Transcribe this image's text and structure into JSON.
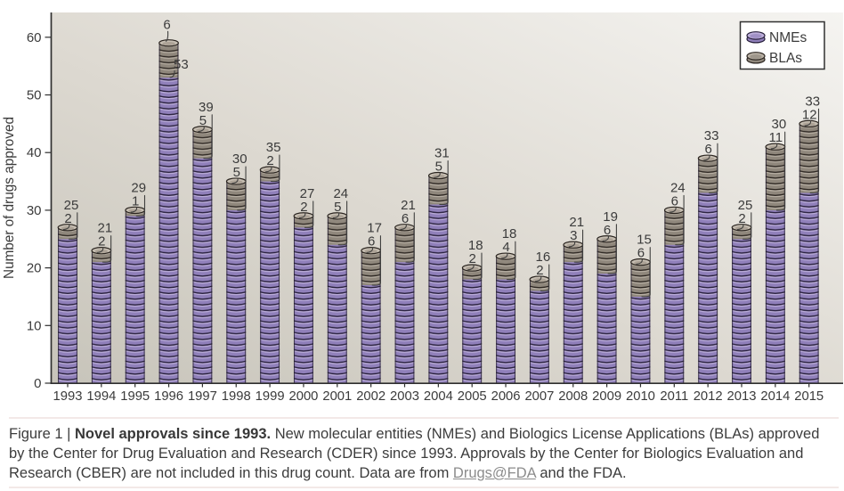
{
  "chart_data": {
    "type": "bar",
    "stacked": true,
    "bar_texture": "coin-stack",
    "title": "",
    "xlabel": "",
    "ylabel": "Number of drugs approved",
    "ylim": [
      0,
      60
    ],
    "yticks": [
      0,
      10,
      20,
      30,
      40,
      50,
      60
    ],
    "grid": false,
    "legend": {
      "position": "top-right",
      "entries": [
        "NMEs",
        "BLAs"
      ]
    },
    "categories": [
      "1993",
      "1994",
      "1995",
      "1996",
      "1997",
      "1998",
      "1999",
      "2000",
      "2001",
      "2002",
      "2003",
      "2004",
      "2005",
      "2006",
      "2007",
      "2008",
      "2009",
      "2010",
      "2011",
      "2012",
      "2013",
      "2014",
      "2015"
    ],
    "series": [
      {
        "name": "NMEs",
        "values": [
          25,
          21,
          29,
          53,
          39,
          30,
          35,
          27,
          24,
          17,
          21,
          31,
          18,
          18,
          16,
          21,
          19,
          15,
          24,
          33,
          25,
          30,
          33
        ]
      },
      {
        "name": "BLAs",
        "values": [
          2,
          2,
          1,
          6,
          5,
          5,
          2,
          2,
          5,
          6,
          6,
          5,
          2,
          4,
          2,
          3,
          6,
          6,
          6,
          6,
          2,
          11,
          12
        ]
      }
    ],
    "colors": {
      "nme_base": "#9080ba",
      "nme_highlight": "#bcaeda",
      "nme_rim": "#261e3a",
      "bla_base": "#8f877c",
      "bla_highlight": "#b9b1a5",
      "bla_rim": "#2b2520",
      "cap_face": "#c6beb2",
      "cap_inner": "#a79e91",
      "panel_dark": "#c7c4ba",
      "panel_mid": "#ddd9d1",
      "panel_light": "#f5f4f1",
      "axis": "#2f2f2f",
      "label_text": "#3b3b3b",
      "leader_line": "#40403f",
      "legend_bg": "#ffffff"
    }
  },
  "caption": {
    "prefix": "Figure 1 | ",
    "title_bold": "Novel approvals since 1993.",
    "line1_rest": " New molecular entities (NMEs) and Biologics License Applications (BLAs) approved",
    "line2": "by the Center for Drug Evaluation and Research (CDER) since 1993. Approvals by the Center for Biologics Evaluation and",
    "line3_before": "Research (CBER) are not included in this drug count. Data are from ",
    "link_text": "Drugs@FDA",
    "line3_after": " and the FDA."
  }
}
